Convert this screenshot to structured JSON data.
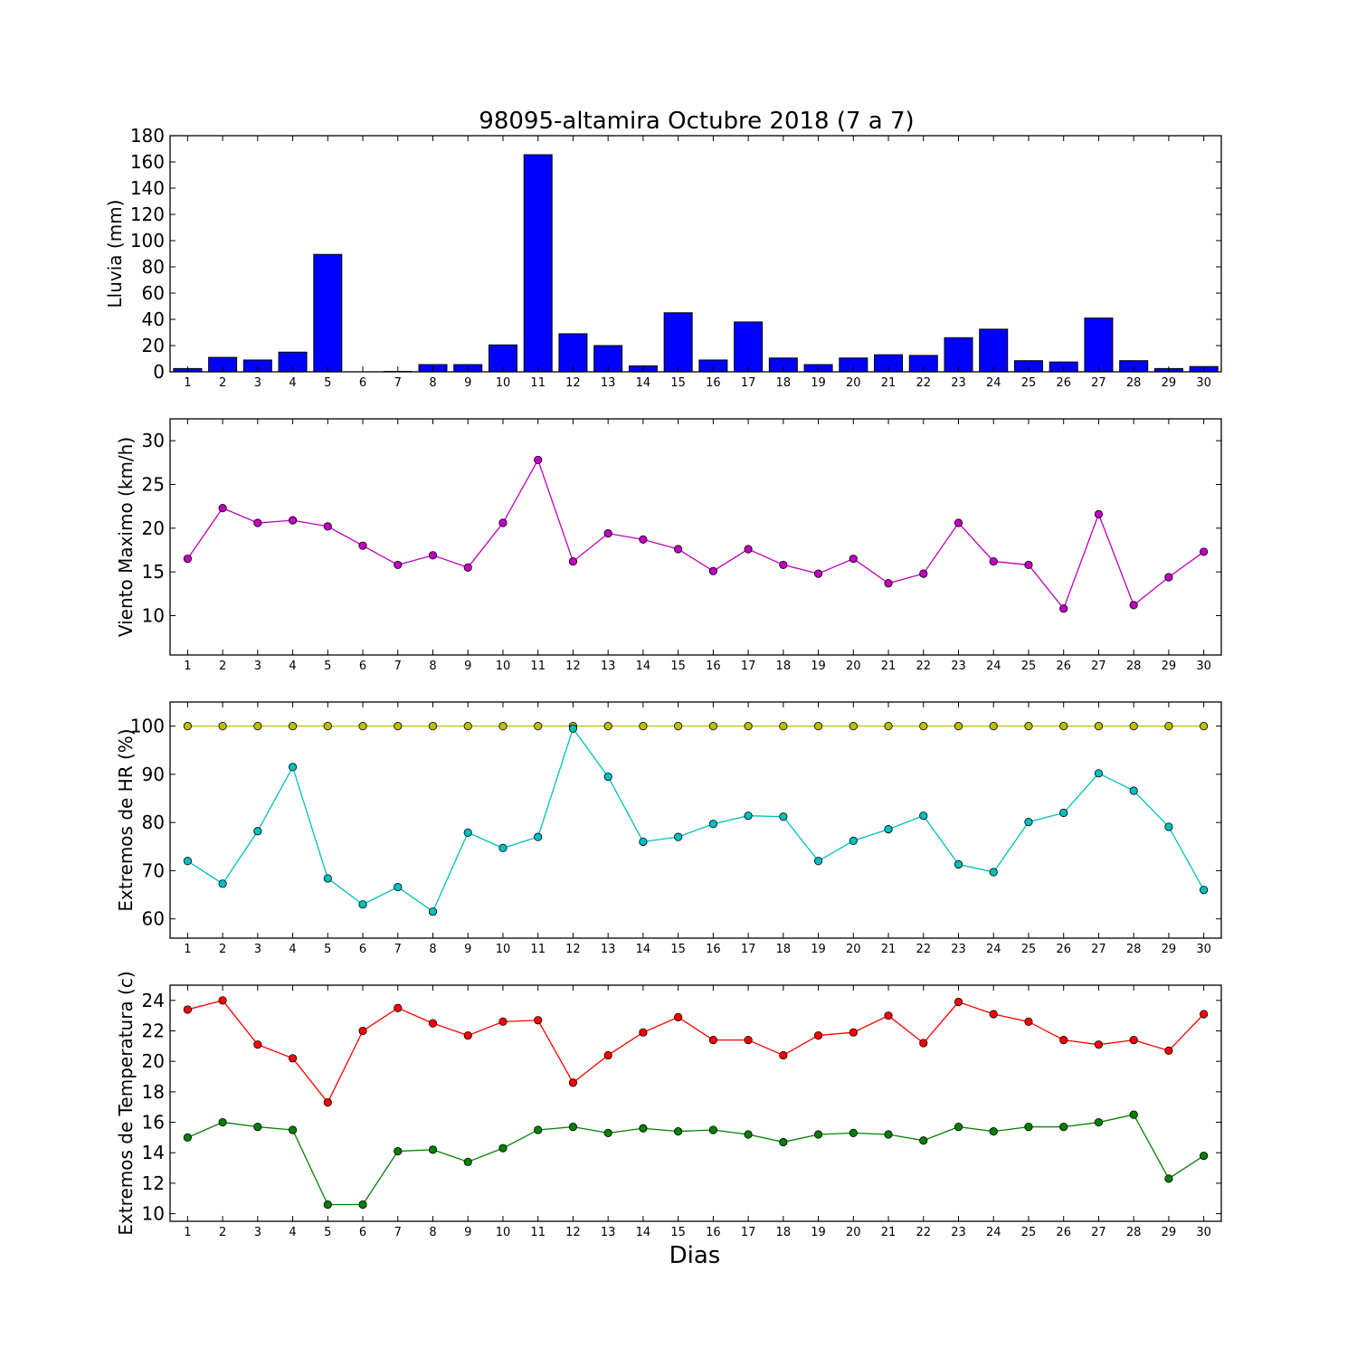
{
  "figure": {
    "title": "98095-altamira Octubre 2018  (7 a 7)",
    "xlabel": "Dias"
  },
  "chart_data": [
    {
      "type": "bar",
      "ylabel": "Lluvia (mm)",
      "ylim": [
        0,
        180
      ],
      "yticks": [
        0,
        20,
        40,
        60,
        80,
        100,
        120,
        140,
        160,
        180
      ],
      "categories": [
        "1",
        "2",
        "3",
        "4",
        "5",
        "6",
        "7",
        "8",
        "9",
        "10",
        "11",
        "12",
        "13",
        "14",
        "15",
        "16",
        "17",
        "18",
        "19",
        "20",
        "21",
        "22",
        "23",
        "24",
        "25",
        "26",
        "27",
        "28",
        "29",
        "30"
      ],
      "series": [
        {
          "color": "#0000ff",
          "values": [
            2.5,
            11,
            9,
            15,
            89.5,
            0,
            0.3,
            5.5,
            5.5,
            20.5,
            165.5,
            29,
            20,
            4.5,
            45,
            9,
            38,
            10.5,
            5.5,
            10.5,
            13,
            12.5,
            26,
            32.5,
            8.5,
            7.5,
            41,
            8.5,
            2.5,
            4
          ]
        }
      ]
    },
    {
      "type": "line",
      "ylabel": "Viento Maximo (km/h)",
      "ylim": [
        5.5,
        32.5
      ],
      "yticks": [
        10,
        15,
        20,
        25,
        30
      ],
      "categories": [
        "1",
        "2",
        "3",
        "4",
        "5",
        "6",
        "7",
        "8",
        "9",
        "10",
        "11",
        "12",
        "13",
        "14",
        "15",
        "16",
        "17",
        "18",
        "19",
        "20",
        "21",
        "22",
        "23",
        "24",
        "25",
        "26",
        "27",
        "28",
        "29",
        "30"
      ],
      "series": [
        {
          "color": "#bf00bf",
          "values": [
            16.5,
            22.3,
            20.6,
            20.9,
            20.2,
            18,
            15.8,
            16.9,
            15.5,
            20.6,
            27.8,
            16.2,
            19.4,
            18.7,
            17.6,
            15.1,
            17.6,
            15.8,
            14.8,
            16.5,
            13.7,
            14.8,
            20.6,
            16.2,
            15.8,
            10.8,
            21.6,
            11.2,
            14.4,
            17.3
          ]
        }
      ]
    },
    {
      "type": "line",
      "ylabel": "Extremos de HR (%)",
      "ylim": [
        56,
        105
      ],
      "yticks": [
        60,
        70,
        80,
        90,
        100
      ],
      "categories": [
        "1",
        "2",
        "3",
        "4",
        "5",
        "6",
        "7",
        "8",
        "9",
        "10",
        "11",
        "12",
        "13",
        "14",
        "15",
        "16",
        "17",
        "18",
        "19",
        "20",
        "21",
        "22",
        "23",
        "24",
        "25",
        "26",
        "27",
        "28",
        "29",
        "30"
      ],
      "series": [
        {
          "color": "#bfbf00",
          "values": [
            100,
            100,
            100,
            100,
            100,
            100,
            100,
            100,
            100,
            100,
            100,
            100,
            100,
            100,
            100,
            100,
            100,
            100,
            100,
            100,
            100,
            100,
            100,
            100,
            100,
            100,
            100,
            100,
            100,
            100
          ]
        },
        {
          "color": "#00bfbf",
          "values": [
            72,
            67.3,
            78.2,
            91.5,
            68.4,
            63,
            66.6,
            61.5,
            77.9,
            74.7,
            77,
            99.5,
            89.5,
            76,
            77,
            79.7,
            81.4,
            81.2,
            72,
            76.2,
            78.6,
            81.4,
            71.3,
            69.7,
            80.1,
            82,
            90.2,
            86.6,
            79.1,
            66
          ]
        }
      ]
    },
    {
      "type": "line",
      "ylabel": "Extremos de Temperatura (c)",
      "ylim": [
        9.5,
        25
      ],
      "yticks": [
        10,
        12,
        14,
        16,
        18,
        20,
        22,
        24
      ],
      "categories": [
        "1",
        "2",
        "3",
        "4",
        "5",
        "6",
        "7",
        "8",
        "9",
        "10",
        "11",
        "12",
        "13",
        "14",
        "15",
        "16",
        "17",
        "18",
        "19",
        "20",
        "21",
        "22",
        "23",
        "24",
        "25",
        "26",
        "27",
        "28",
        "29",
        "30"
      ],
      "series": [
        {
          "color": "#ff0000",
          "values": [
            23.4,
            24,
            21.1,
            20.2,
            17.3,
            22,
            23.5,
            22.5,
            21.7,
            22.6,
            22.7,
            18.6,
            20.4,
            21.9,
            22.9,
            21.4,
            21.4,
            20.4,
            21.7,
            21.9,
            23,
            21.2,
            23.9,
            23.1,
            22.6,
            21.4,
            21.1,
            21.4,
            20.7,
            23.1
          ]
        },
        {
          "color": "#008000",
          "values": [
            15,
            16,
            15.7,
            15.5,
            10.6,
            10.6,
            14.1,
            14.2,
            13.4,
            14.3,
            15.5,
            15.7,
            15.3,
            15.6,
            15.4,
            15.5,
            15.2,
            14.7,
            15.2,
            15.3,
            15.2,
            14.8,
            15.7,
            15.4,
            15.7,
            15.7,
            16,
            16.5,
            12.3,
            13.8
          ]
        }
      ]
    }
  ]
}
